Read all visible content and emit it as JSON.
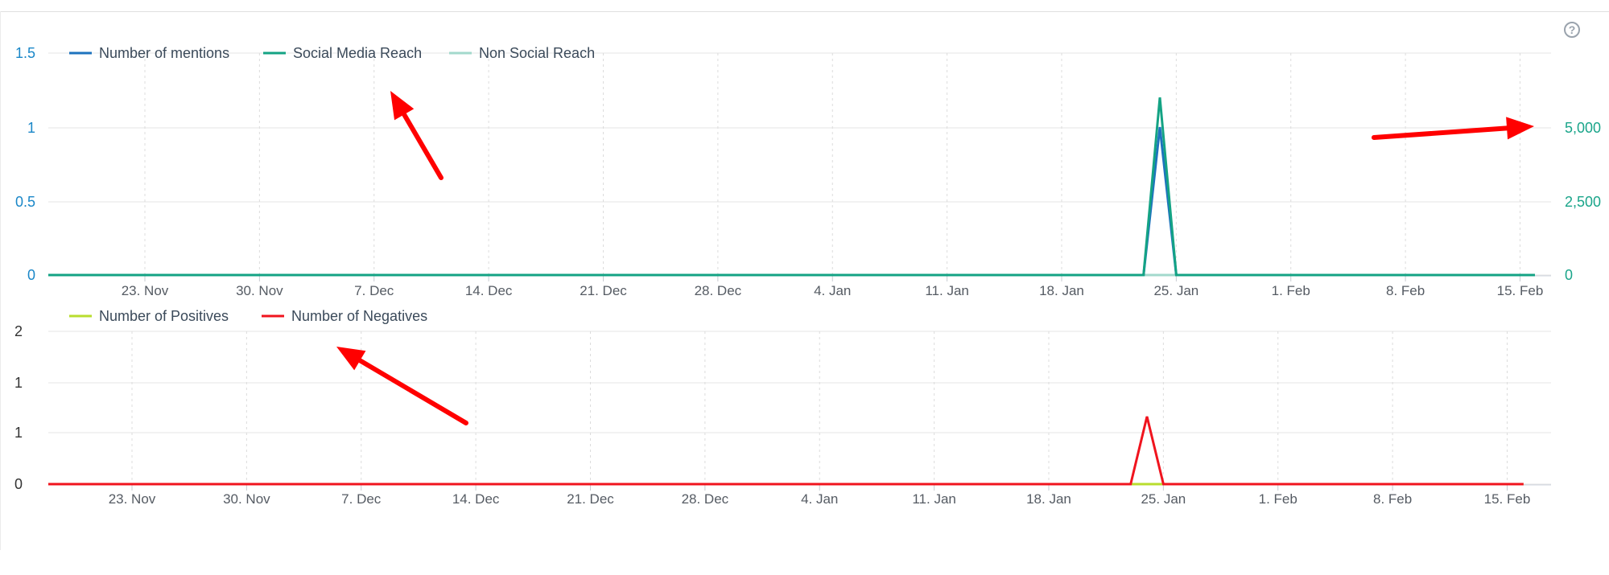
{
  "colors": {
    "mentions": "#1e73be",
    "social_reach": "#14a384",
    "non_social_reach": "#a3d9cc",
    "positives": "#b8dd2e",
    "negatives": "#f0141e",
    "annotation_arrow": "#ff0000"
  },
  "icons": {
    "help": "question-circle-icon"
  },
  "help_icon_glyph": "?",
  "chart_data": [
    {
      "type": "line",
      "title": "",
      "xlabel": "",
      "x_tick_labels": [
        "23. Nov",
        "30. Nov",
        "7. Dec",
        "14. Dec",
        "21. Dec",
        "28. Dec",
        "4. Jan",
        "11. Jan",
        "18. Jan",
        "25. Jan",
        "1. Feb",
        "8. Feb",
        "15. Feb"
      ],
      "x_range": [
        "2020-11-17",
        "2021-02-16"
      ],
      "y_left": {
        "label": "",
        "ticks": [
          "0",
          "0.5",
          "1",
          "1.5"
        ],
        "ylim": [
          0,
          1.5
        ]
      },
      "y_right": {
        "label": "",
        "ticks": [
          "0",
          "2,500",
          "5,000"
        ],
        "ylim": [
          0,
          7500
        ]
      },
      "legend_position": "top-left",
      "grid": true,
      "series": [
        {
          "name": "Number of mentions",
          "axis": "left",
          "x": [
            "2020-11-17",
            "2021-01-23",
            "2021-01-24",
            "2021-01-25",
            "2021-02-16"
          ],
          "values": [
            0,
            0,
            1,
            0,
            0
          ]
        },
        {
          "name": "Social Media Reach",
          "axis": "right",
          "x": [
            "2020-11-17",
            "2021-01-23",
            "2021-01-24",
            "2021-01-25",
            "2021-02-16"
          ],
          "values": [
            0,
            0,
            6000,
            0,
            0
          ]
        },
        {
          "name": "Non Social Reach",
          "axis": "right",
          "x": [
            "2020-11-17",
            "2021-02-16"
          ],
          "values": [
            0,
            0
          ]
        }
      ]
    },
    {
      "type": "line",
      "title": "",
      "xlabel": "",
      "x_tick_labels": [
        "23. Nov",
        "30. Nov",
        "7. Dec",
        "14. Dec",
        "21. Dec",
        "28. Dec",
        "4. Jan",
        "11. Jan",
        "18. Jan",
        "25. Jan",
        "1. Feb",
        "8. Feb",
        "15. Feb"
      ],
      "x_range": [
        "2020-11-17",
        "2021-02-16"
      ],
      "y_left": {
        "label": "",
        "ticks": [
          "0",
          "1",
          "1",
          "2"
        ],
        "ylim": [
          0,
          1.5
        ]
      },
      "legend_position": "top-left",
      "grid": true,
      "series": [
        {
          "name": "Number of Positives",
          "x": [
            "2020-11-17",
            "2021-02-16"
          ],
          "values": [
            0,
            0
          ]
        },
        {
          "name": "Number of Negatives",
          "x": [
            "2020-11-17",
            "2021-01-23",
            "2021-01-24",
            "2021-01-25",
            "2021-02-16"
          ],
          "values": [
            0,
            0,
            1,
            0,
            0
          ]
        }
      ]
    }
  ]
}
